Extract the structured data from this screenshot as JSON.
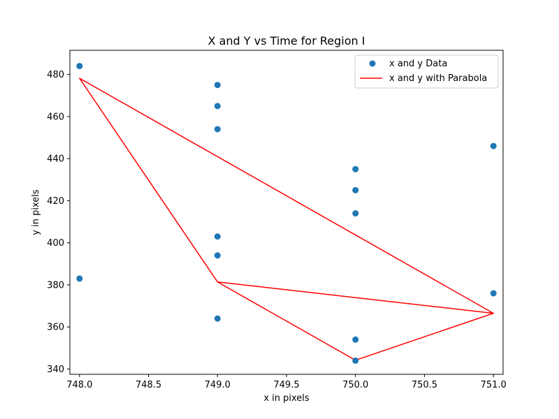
{
  "chart_data": {
    "type": "scatter",
    "title": "X and Y vs Time for Region I",
    "xlabel": "x in pixels",
    "ylabel": "y in pixels",
    "xlim": [
      747.93,
      751.07
    ],
    "ylim": [
      337.5,
      491.5
    ],
    "xticks": [
      748.0,
      748.5,
      749.0,
      749.5,
      750.0,
      750.5,
      751.0
    ],
    "xtick_labels": [
      "748.0",
      "748.5",
      "749.0",
      "749.5",
      "750.0",
      "750.5",
      "751.0"
    ],
    "yticks": [
      340,
      360,
      380,
      400,
      420,
      440,
      460,
      480
    ],
    "ytick_labels": [
      "340",
      "360",
      "380",
      "400",
      "420",
      "440",
      "460",
      "480"
    ],
    "grid": false,
    "legend_position": "top-right",
    "series": [
      {
        "name": "x and y Data",
        "kind": "scatter",
        "color": "#1f77b4",
        "points": [
          [
            748,
            484
          ],
          [
            748,
            383
          ],
          [
            749,
            475
          ],
          [
            749,
            465
          ],
          [
            749,
            454
          ],
          [
            749,
            403
          ],
          [
            749,
            394
          ],
          [
            749,
            364
          ],
          [
            750,
            435
          ],
          [
            750,
            425
          ],
          [
            750,
            414
          ],
          [
            750,
            354
          ],
          [
            750,
            344
          ],
          [
            751,
            446
          ],
          [
            751,
            376
          ]
        ]
      },
      {
        "name": "x and y with Parabola",
        "kind": "line",
        "color": "#ff0000",
        "points": [
          [
            748,
            478.2
          ],
          [
            749,
            381.4
          ],
          [
            750,
            344.2
          ],
          [
            751,
            366.5
          ],
          [
            749,
            381.4
          ],
          [
            748,
            478.2
          ],
          [
            751,
            366.5
          ],
          [
            750,
            344.2
          ],
          [
            749,
            381.4
          ],
          [
            751,
            366.5
          ]
        ]
      }
    ]
  }
}
